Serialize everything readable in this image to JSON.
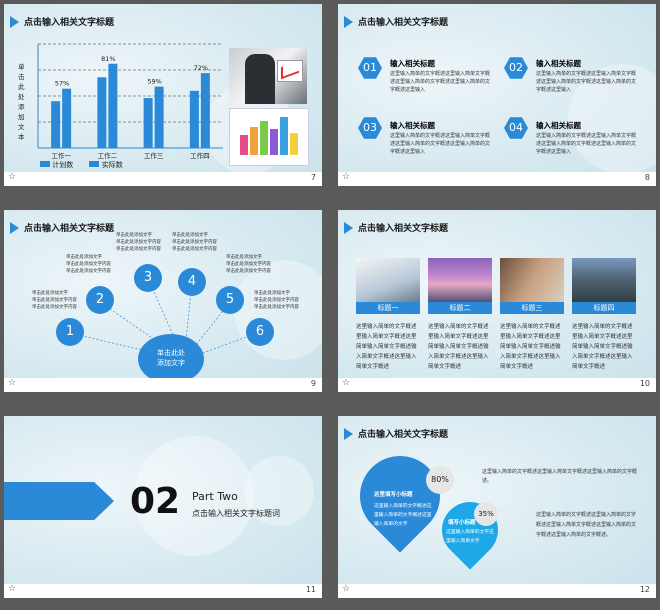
{
  "slides": {
    "s7": {
      "title": "点击输入相关文字标题",
      "number": "7",
      "ylabel": "单击此处添加文本",
      "legend": [
        "计划数",
        "实际数"
      ]
    },
    "s8": {
      "title": "点击输入相关文字标题",
      "number": "8",
      "items": [
        {
          "num": "01",
          "heading": "输入相关标题",
          "body": "这里输入简单的文字概述这里输入简单文字概述这里输入简单的文字概述这里输入简单的文字概述这里输入"
        },
        {
          "num": "02",
          "heading": "输入相关标题",
          "body": "这里输入简单的文字概述这里输入简单文字概述这里输入简单的文字概述这里输入简单的文字概述这里输入"
        },
        {
          "num": "03",
          "heading": "输入相关标题",
          "body": "这里输入简单的文字概述这里输入简单文字概述这里输入简单的文字概述这里输入简单的文字概述这里输入"
        },
        {
          "num": "04",
          "heading": "输入相关标题",
          "body": "这里输入简单的文字概述这里输入简单文字概述这里输入简单的文字概述这里输入简单的文字概述这里输入"
        }
      ]
    },
    "s9": {
      "title": "点击输入相关文字标题",
      "number": "9",
      "center": "单击此处\n添加文字",
      "nodes": [
        "1",
        "2",
        "3",
        "4",
        "5",
        "6"
      ],
      "text_line1": "单击此处添加文字",
      "text_line2": "单击此处添加文字内容"
    },
    "s10": {
      "title": "点击输入相关文字标题",
      "number": "10",
      "captions": [
        "标题一",
        "标题二",
        "标题三",
        "标题四"
      ],
      "body": "这里输入简单的文字概述里输入简单文字概述这里简单输入简单文字概述输入简单文字概述这里输入简单文字概述"
    },
    "s11": {
      "number": "11",
      "big": "02",
      "part": "Part Two",
      "sub": "点击输入相关文字标题词"
    },
    "s12": {
      "title": "点击输入相关文字标题",
      "number": "12",
      "pct1": "80%",
      "pct2": "35%",
      "drop1_title": "这里填写小标题",
      "drop1_body": "这里输入简单的文字概述这里输入简单的文字概述这里输入简单的文字",
      "drop2_title": "填写小标题",
      "drop2_body": "这里输入简单的文字这里输入简单文字",
      "right1": "这里输入简单的文字概述这里输入简单文字概述这里输入简单的文字概述。",
      "right2": "这里输入简单的文字概述这里输入简单的文字概述这里输入简单文字概述这里输入简单的文字概述这里输入简单的文字概述。"
    }
  },
  "chart_data": {
    "type": "bar",
    "categories": [
      "工作一",
      "工作二",
      "工作三",
      "工作四"
    ],
    "series": [
      {
        "name": "计划数",
        "values": [
          45,
          68,
          48,
          55
        ]
      },
      {
        "name": "实际数",
        "values": [
          57,
          81,
          59,
          72
        ]
      }
    ],
    "data_labels": [
      "57%",
      "81%",
      "59%",
      "72%"
    ],
    "ylabel": "单击此处添加文本",
    "ylim": [
      0,
      100
    ],
    "colors": [
      "#2a8ad8",
      "#2a8ad8"
    ],
    "grid": "dashed"
  }
}
